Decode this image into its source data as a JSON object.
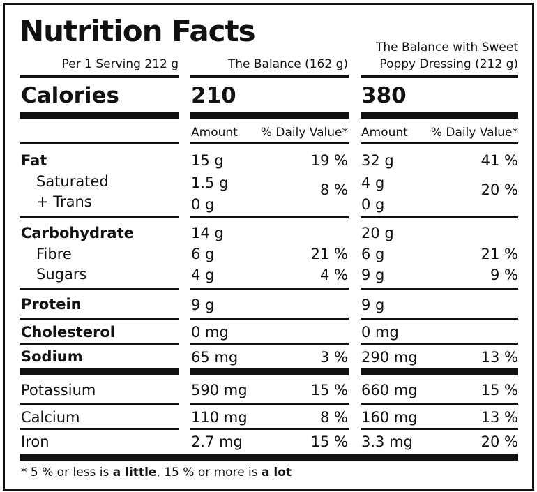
{
  "title": "Nutrition Facts",
  "serving_label": "Per 1 Serving 212 g",
  "columns": [
    {
      "header_line1": "",
      "header_line2": "The Balance (162 g)",
      "calories": "210"
    },
    {
      "header_line1": "The Balance with Sweet",
      "header_line2": "Poppy Dressing (212 g)",
      "calories": "380"
    }
  ],
  "calories_label": "Calories",
  "amount_label": "Amount",
  "dv_label": "% Daily Value*",
  "rows": {
    "fat": {
      "label": "Fat",
      "a1": "15 g",
      "d1": "19 %",
      "a2": "32 g",
      "d2": "41 %"
    },
    "saturated": {
      "label": "Saturated",
      "a1": "1.5 g",
      "a2": "4 g"
    },
    "trans": {
      "label": "+ Trans",
      "a1": "0 g",
      "a2": "0 g"
    },
    "sat_trans_dv": {
      "d1": "8 %",
      "d2": "20 %"
    },
    "carb": {
      "label": "Carbohydrate",
      "a1": "14 g",
      "a2": "20 g"
    },
    "fibre": {
      "label": "Fibre",
      "a1": "6 g",
      "d1": "21 %",
      "a2": "6 g",
      "d2": "21 %"
    },
    "sugars": {
      "label": "Sugars",
      "a1": "4 g",
      "d1": "4 %",
      "a2": "9 g",
      "d2": "9 %"
    },
    "protein": {
      "label": "Protein",
      "a1": "9 g",
      "a2": "9 g"
    },
    "cholesterol": {
      "label": "Cholesterol",
      "a1": "0 mg",
      "a2": "0 mg"
    },
    "sodium": {
      "label": "Sodium",
      "a1": "65 mg",
      "d1": "3 %",
      "a2": "290 mg",
      "d2": "13 %"
    },
    "potassium": {
      "label": "Potassium",
      "a1": "590 mg",
      "d1": "15 %",
      "a2": "660 mg",
      "d2": "15 %"
    },
    "calcium": {
      "label": "Calcium",
      "a1": "110 mg",
      "d1": "8 %",
      "a2": "160 mg",
      "d2": "13 %"
    },
    "iron": {
      "label": "Iron",
      "a1": "2.7 mg",
      "d1": "15 %",
      "a2": "3.3 mg",
      "d2": "20 %"
    }
  },
  "footnote": {
    "p1": "* 5 % or less is ",
    "b1": "a little",
    "p2": ", 15 %  or more is ",
    "b2": "a lot"
  }
}
